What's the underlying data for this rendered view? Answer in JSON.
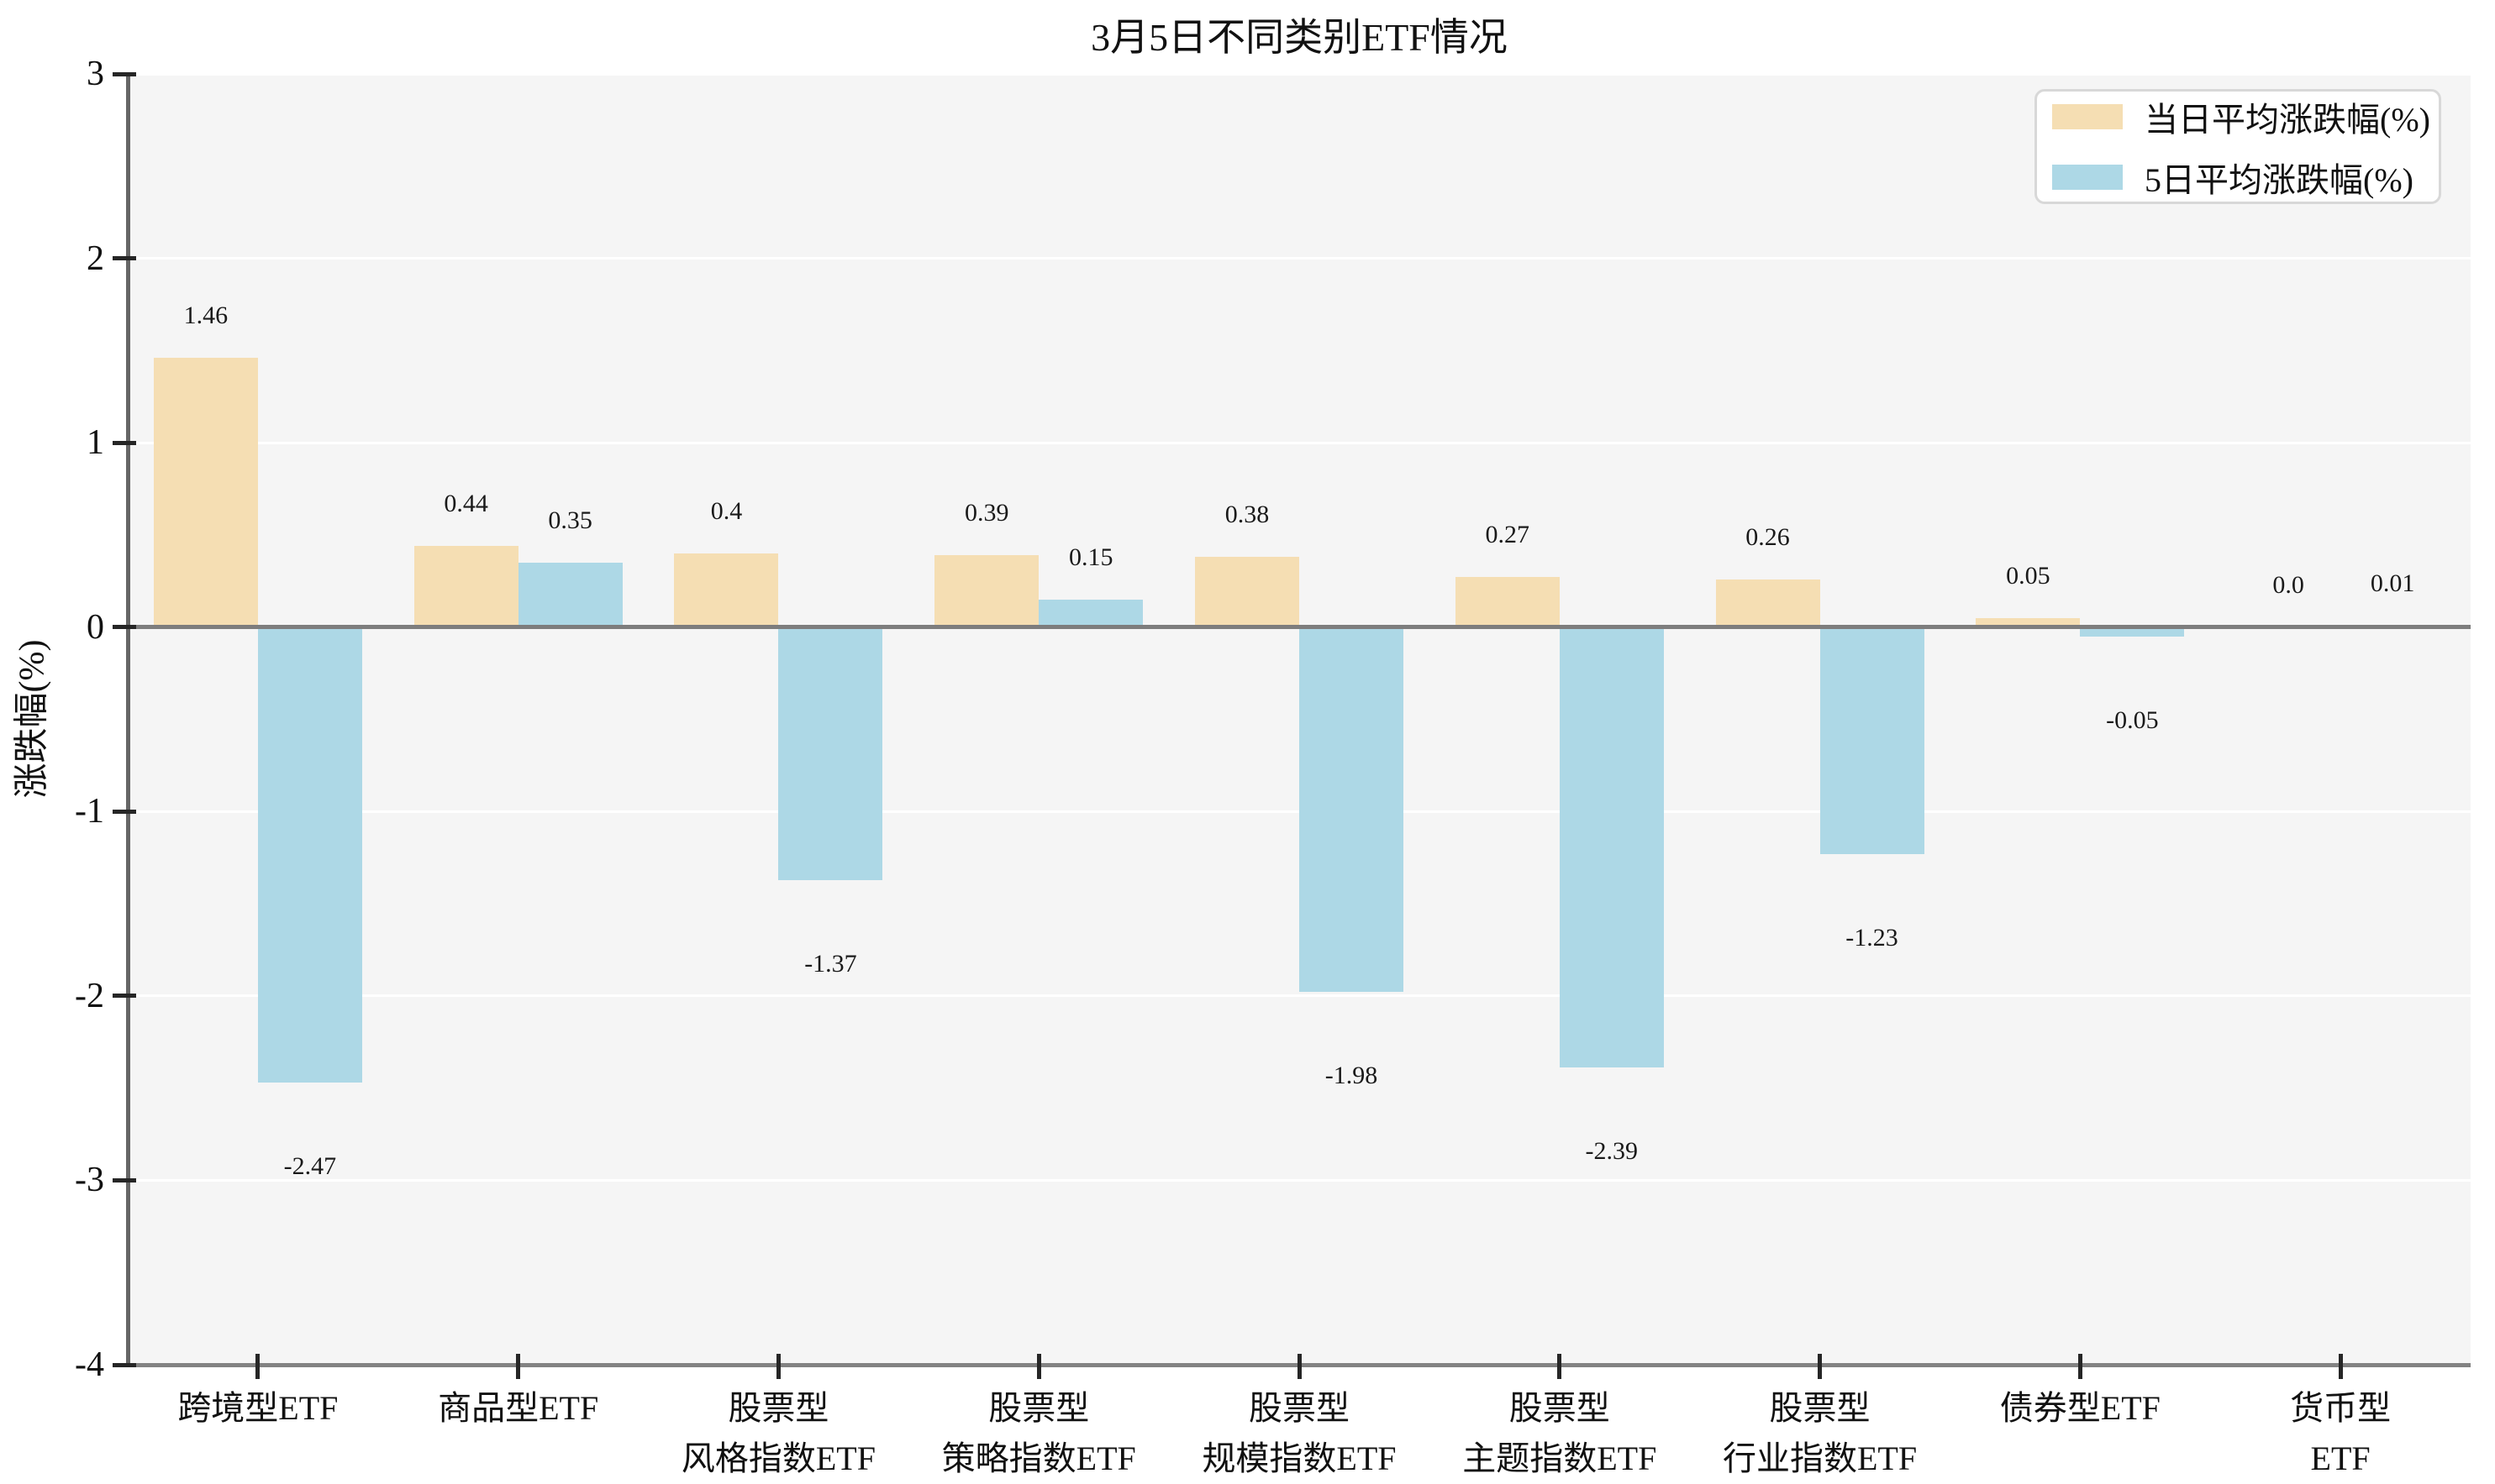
{
  "chart_data": {
    "type": "bar",
    "title": "3月5日不同类别ETF情况",
    "ylabel": "涨跌幅(%)",
    "xlabel": "",
    "ylim": [
      -4,
      3
    ],
    "yticks": [
      3,
      2,
      1,
      0,
      -1,
      -2,
      -3,
      -4
    ],
    "grid": true,
    "legend_position": "upper right",
    "plot_bg_color": "#f5f5f5",
    "categories": [
      "跨境型ETF",
      "商品型ETF",
      "股票型\n风格指数ETF",
      "股票型\n策略指数ETF",
      "股票型\n规模指数ETF",
      "股票型\n主题指数ETF",
      "股票型\n行业指数ETF",
      "债券型ETF",
      "货币型ETF"
    ],
    "series": [
      {
        "name": "当日平均涨跌幅(%)",
        "color": "#f5deb3",
        "values": [
          1.46,
          0.44,
          0.4,
          0.39,
          0.38,
          0.27,
          0.26,
          0.05,
          0.0
        ],
        "labels": [
          "1.46",
          "0.44",
          "0.4",
          "0.39",
          "0.38",
          "0.27",
          "0.26",
          "0.05",
          "0.0"
        ]
      },
      {
        "name": "5日平均涨跌幅(%)",
        "color": "#add8e6",
        "values": [
          -2.47,
          0.35,
          -1.37,
          0.15,
          -1.98,
          -2.39,
          -1.23,
          -0.05,
          0.01
        ],
        "labels": [
          "-2.47",
          "0.35",
          "-1.37",
          "0.15",
          "-1.98",
          "-2.39",
          "-1.23",
          "-0.05",
          "0.01"
        ]
      }
    ]
  }
}
